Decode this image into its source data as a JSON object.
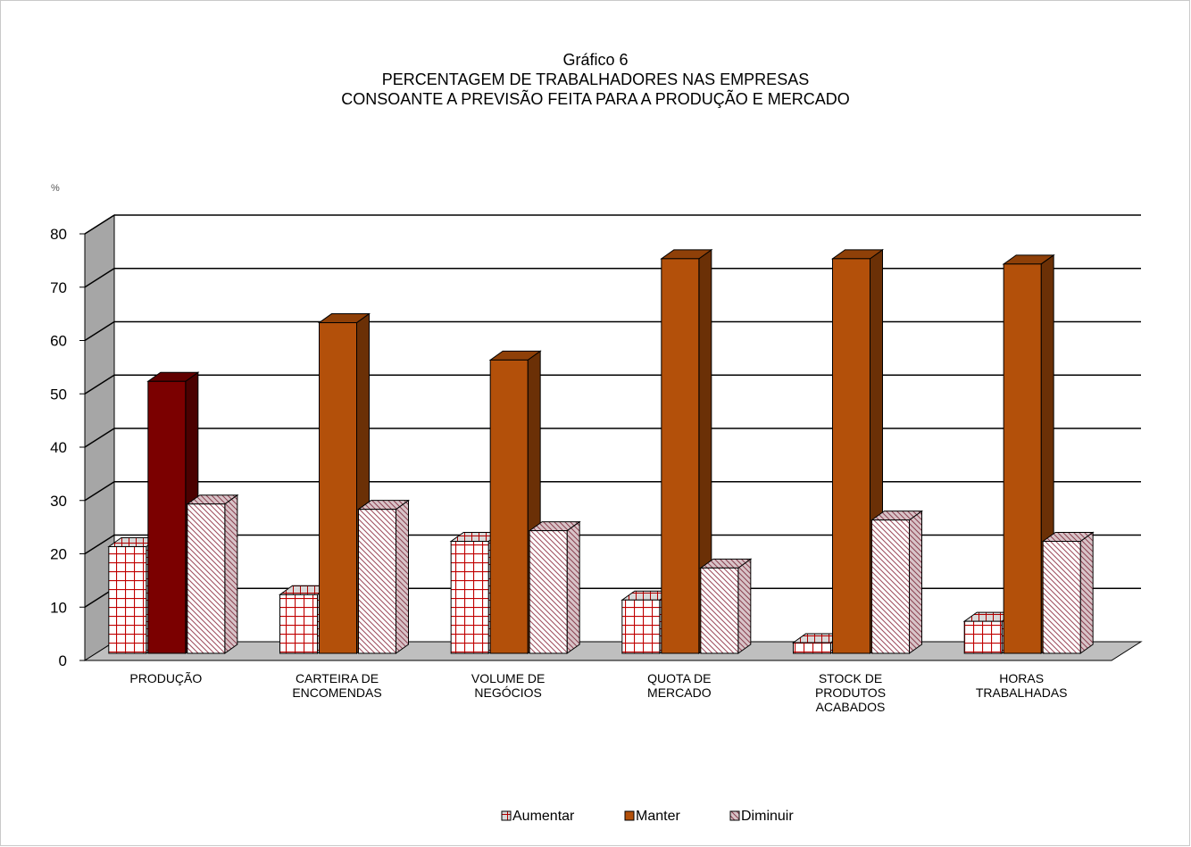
{
  "chart_data": {
    "type": "bar",
    "title": [
      "Gráfico 6",
      "PERCENTAGEM DE TRABALHADORES NAS EMPRESAS",
      "CONSOANTE A PREVISÃO FEITA PARA A PRODUÇÃO E MERCADO"
    ],
    "ylabel": "%",
    "ylim": [
      0,
      80
    ],
    "yticks": [
      "0",
      "10",
      "20",
      "30",
      "40",
      "50",
      "60",
      "70",
      "80"
    ],
    "categories": [
      [
        "PRODUÇÃO"
      ],
      [
        "CARTEIRA DE",
        "ENCOMENDAS"
      ],
      [
        "VOLUME DE",
        "NEGÓCIOS"
      ],
      [
        "QUOTA DE",
        "MERCADO"
      ],
      [
        "STOCK DE",
        "PRODUTOS",
        "ACABADOS"
      ],
      [
        "HORAS",
        "TRABALHADAS"
      ]
    ],
    "series": [
      {
        "name": "Aumentar",
        "values": [
          20,
          11,
          21,
          10,
          2,
          6
        ],
        "pattern": "grid",
        "color": "#ffffff",
        "accent": "#c00000"
      },
      {
        "name": "Manter",
        "values": [
          51,
          62,
          55,
          74,
          74,
          73
        ],
        "pattern": "solid",
        "color": "#b3500a",
        "highlight_color": "#7b0000"
      },
      {
        "name": "Diminuir",
        "values": [
          28,
          27,
          23,
          16,
          25,
          21
        ],
        "pattern": "diagonal",
        "color": "#ffffff",
        "accent": "#a05060"
      }
    ],
    "grid": true,
    "legend": "bottom",
    "style": "3d-clustered-column"
  }
}
